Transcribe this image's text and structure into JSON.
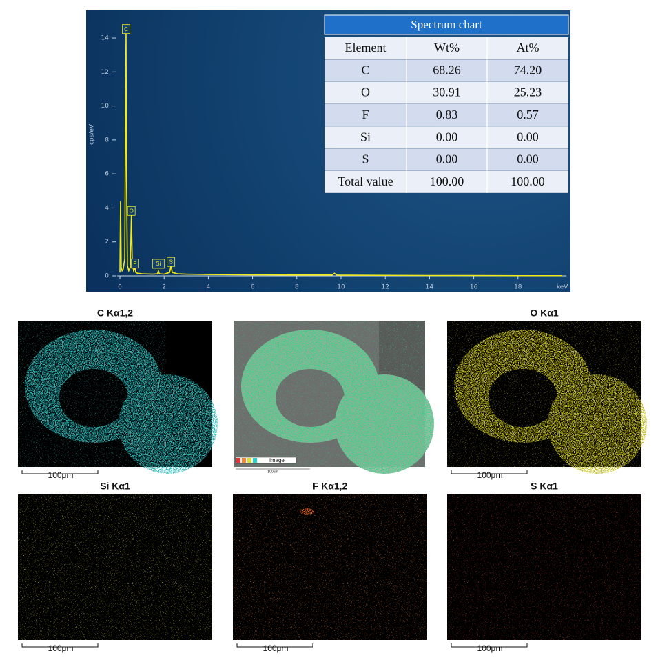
{
  "chart_data": {
    "type": "line",
    "x_label": "keV",
    "y_label": "cps/eV",
    "x": [
      0,
      0.03,
      0.06,
      0.1,
      0.15,
      0.22,
      0.26,
      0.28,
      0.3,
      0.34,
      0.4,
      0.47,
      0.52,
      0.56,
      0.62,
      0.68,
      0.72,
      0.8,
      1.0,
      1.5,
      1.7,
      1.74,
      1.78,
      2.0,
      2.25,
      2.31,
      2.37,
      2.6,
      3,
      4,
      5,
      6,
      8,
      9.6,
      9.7,
      9.8,
      10,
      12,
      14,
      16,
      18,
      20
    ],
    "series": [
      {
        "color": "#f2e81c",
        "values": [
          0.2,
          4.4,
          0.5,
          0.3,
          0.4,
          1.0,
          10.6,
          14.3,
          6,
          0.6,
          0.3,
          0.5,
          3.6,
          0.8,
          0.3,
          0.5,
          0.2,
          0.15,
          0.12,
          0.1,
          0.12,
          0.3,
          0.12,
          0.1,
          0.2,
          0.6,
          0.2,
          0.12,
          0.1,
          0.08,
          0.07,
          0.06,
          0.05,
          0.05,
          0.15,
          0.05,
          0.04,
          0.03,
          0.02,
          0.02,
          0.01,
          0.01
        ]
      }
    ],
    "peak_labels": [
      {
        "text": "C",
        "x": 0.28
      },
      {
        "text": "O",
        "x": 0.52
      },
      {
        "text": "F",
        "x": 0.68
      },
      {
        "text": "Si",
        "x": 1.74
      },
      {
        "text": "S",
        "x": 2.31
      }
    ],
    "xlim": [
      0,
      20
    ],
    "xticks": [
      0,
      2,
      4,
      6,
      8,
      10,
      12,
      14,
      16,
      18
    ],
    "ylim": [
      0,
      15
    ],
    "yticks": [
      0,
      2,
      4,
      6,
      8,
      10,
      12,
      14
    ]
  },
  "table": {
    "title": "Spectrum chart",
    "columns": [
      "Element",
      "Wt%",
      "At%"
    ],
    "rows": [
      [
        "C",
        "68.26",
        "74.20"
      ],
      [
        "O",
        "30.91",
        "25.23"
      ],
      [
        "F",
        "0.83",
        "0.57"
      ],
      [
        "Si",
        "0.00",
        "0.00"
      ],
      [
        "S",
        "0.00",
        "0.00"
      ],
      [
        "Total value",
        "100.00",
        "100.00"
      ]
    ]
  },
  "maps": [
    {
      "title": "C Kα1,2",
      "scale": "100μm"
    },
    {
      "legend": "image",
      "scale": "100μm"
    },
    {
      "title": "O Kα1",
      "scale": "100μm"
    },
    {
      "title": "Si Kα1",
      "scale": "100μm"
    },
    {
      "title": "F Kα1,2",
      "scale": "100μm"
    },
    {
      "title": "S Kα1",
      "scale": "100μm"
    }
  ]
}
